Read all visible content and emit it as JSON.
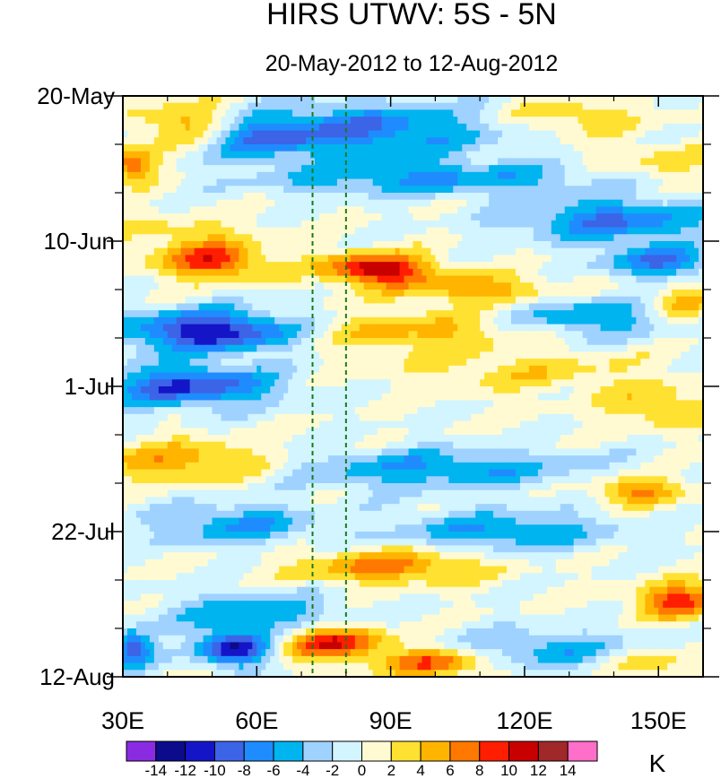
{
  "chart_data": {
    "type": "heatmap",
    "title": "HIRS UTWV: 5S - 5N",
    "subtitle": "20-May-2012 to 12-Aug-2012",
    "xlabel": "",
    "ylabel": "",
    "xlim": [
      30,
      160
    ],
    "x_ticks": [
      {
        "value": 30,
        "label": "30E"
      },
      {
        "value": 60,
        "label": "60E"
      },
      {
        "value": 90,
        "label": "90E"
      },
      {
        "value": 120,
        "label": "120E"
      },
      {
        "value": 150,
        "label": "150E"
      }
    ],
    "x_minor_ticks": [
      40,
      50,
      70,
      80,
      100,
      110,
      130,
      140
    ],
    "ylim_days": [
      0,
      84
    ],
    "y_axis_direction": "time increases downward",
    "y_ticks": [
      {
        "value": 0,
        "label": "20-May"
      },
      {
        "value": 21,
        "label": "10-Jun"
      },
      {
        "value": 42,
        "label": "1-Jul"
      },
      {
        "value": 63,
        "label": "22-Jul"
      },
      {
        "value": 84,
        "label": "12-Aug"
      }
    ],
    "y_minor_ticks": [
      7,
      14,
      28,
      35,
      49,
      56,
      70,
      77
    ],
    "reference_lines": [
      {
        "x": 72.5,
        "style": "dashed",
        "color": "#1a7a1a"
      },
      {
        "x": 80,
        "style": "dashed",
        "color": "#1a7a1a"
      }
    ],
    "colorbar": {
      "unit": "K",
      "boundaries": [
        -16,
        -14,
        -12,
        -10,
        -8,
        -6,
        -4,
        -2,
        0,
        2,
        4,
        6,
        8,
        10,
        12,
        14,
        16
      ],
      "labels": [
        "-14",
        "-12",
        "-10",
        "-8",
        "-6",
        "-4",
        "-2",
        "0",
        "2",
        "4",
        "6",
        "8",
        "10",
        "12",
        "14"
      ],
      "colors": [
        "#8a2be2",
        "#0b0b8c",
        "#1515c8",
        "#3c64e6",
        "#1e8cff",
        "#00b4f0",
        "#a0d2ff",
        "#d2f5ff",
        "#fffad2",
        "#ffe132",
        "#ffb400",
        "#ff7800",
        "#ff1e00",
        "#c80000",
        "#a02828",
        "#ff6ec8"
      ]
    },
    "features": [
      {
        "lon": 45,
        "day": 4,
        "amp": 6,
        "wlon": 12,
        "wday": 3
      },
      {
        "lon": 32,
        "day": 10,
        "amp": 8,
        "wlon": 6,
        "wday": 2.5
      },
      {
        "lon": 60,
        "day": 6,
        "amp": -6,
        "wlon": 12,
        "wday": 3
      },
      {
        "lon": 85,
        "day": 5,
        "amp": -8,
        "wlon": 28,
        "wday": 4
      },
      {
        "lon": 130,
        "day": 3,
        "amp": 4,
        "wlon": 15,
        "wday": 2.5
      },
      {
        "lon": 150,
        "day": 10,
        "amp": 3,
        "wlon": 15,
        "wday": 3
      },
      {
        "lon": 100,
        "day": 12,
        "amp": -6,
        "wlon": 40,
        "wday": 2.5
      },
      {
        "lon": 140,
        "day": 18,
        "amp": -8,
        "wlon": 22,
        "wday": 3
      },
      {
        "lon": 45,
        "day": 20,
        "amp": 3,
        "wlon": 15,
        "wday": 2.5
      },
      {
        "lon": 50,
        "day": 24,
        "amp": 9,
        "wlon": 12,
        "wday": 2.5
      },
      {
        "lon": 87,
        "day": 25,
        "amp": 12,
        "wlon": 12,
        "wday": 2.2
      },
      {
        "lon": 110,
        "day": 28,
        "amp": 6,
        "wlon": 18,
        "wday": 2
      },
      {
        "lon": 150,
        "day": 24,
        "amp": -8,
        "wlon": 12,
        "wday": 2.5
      },
      {
        "lon": 155,
        "day": 30,
        "amp": 5,
        "wlon": 8,
        "wday": 3
      },
      {
        "lon": 50,
        "day": 34,
        "amp": -12,
        "wlon": 20,
        "wday": 3
      },
      {
        "lon": 95,
        "day": 34,
        "amp": 5,
        "wlon": 25,
        "wday": 3
      },
      {
        "lon": 135,
        "day": 32,
        "amp": -6,
        "wlon": 20,
        "wday": 3
      },
      {
        "lon": 45,
        "day": 42,
        "amp": -10,
        "wlon": 20,
        "wday": 3
      },
      {
        "lon": 120,
        "day": 40,
        "amp": 3,
        "wlon": 30,
        "wday": 3
      },
      {
        "lon": 150,
        "day": 45,
        "amp": 4,
        "wlon": 12,
        "wday": 3
      },
      {
        "lon": 45,
        "day": 53,
        "amp": 6,
        "wlon": 20,
        "wday": 3
      },
      {
        "lon": 100,
        "day": 54,
        "amp": -6,
        "wlon": 35,
        "wday": 3
      },
      {
        "lon": 145,
        "day": 57,
        "amp": 7,
        "wlon": 10,
        "wday": 2
      },
      {
        "lon": 55,
        "day": 62,
        "amp": -6,
        "wlon": 18,
        "wday": 3
      },
      {
        "lon": 115,
        "day": 63,
        "amp": -6,
        "wlon": 25,
        "wday": 3
      },
      {
        "lon": 90,
        "day": 68,
        "amp": 7,
        "wlon": 20,
        "wday": 2.5
      },
      {
        "lon": 60,
        "day": 75,
        "amp": -6,
        "wlon": 20,
        "wday": 3
      },
      {
        "lon": 155,
        "day": 73,
        "amp": 9,
        "wlon": 10,
        "wday": 2.5
      },
      {
        "lon": 55,
        "day": 80,
        "amp": -12,
        "wlon": 8,
        "wday": 2.5
      },
      {
        "lon": 32,
        "day": 80,
        "amp": -10,
        "wlon": 5,
        "wday": 2.5
      },
      {
        "lon": 77,
        "day": 79,
        "amp": 10,
        "wlon": 12,
        "wday": 2.5
      },
      {
        "lon": 100,
        "day": 82,
        "amp": 8,
        "wlon": 12,
        "wday": 2
      },
      {
        "lon": 125,
        "day": 80,
        "amp": -5,
        "wlon": 20,
        "wday": 3
      },
      {
        "lon": 150,
        "day": 82,
        "amp": 4,
        "wlon": 10,
        "wday": 2
      }
    ]
  }
}
